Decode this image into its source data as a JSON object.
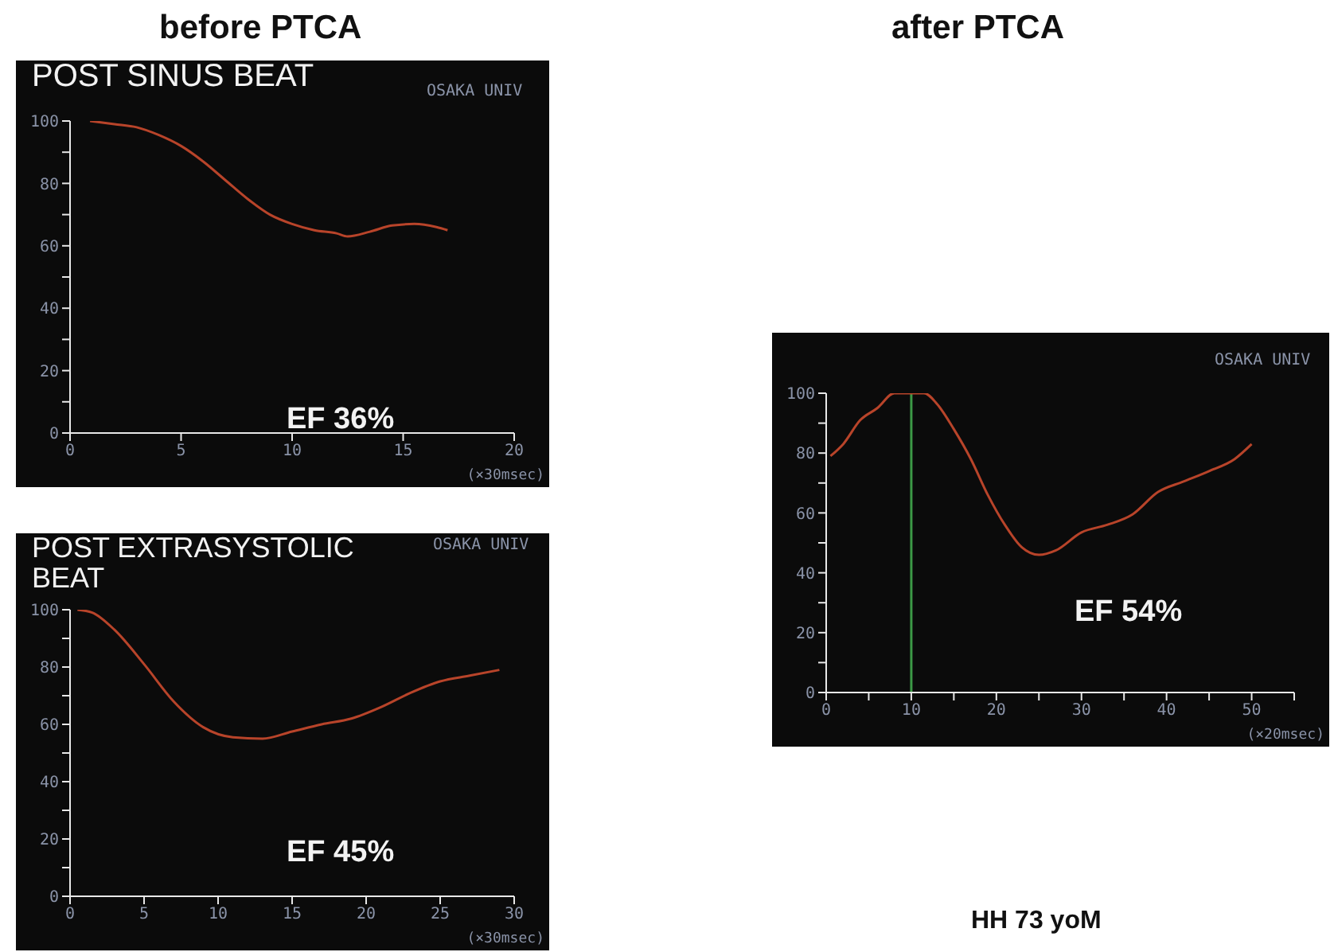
{
  "chart_data": [
    {
      "type": "line",
      "title": "before PTCA",
      "subtitle": "POST SINUS BEAT",
      "xlabel": "(×30msec)",
      "xlim": [
        0,
        20
      ],
      "xticks": [
        0,
        5,
        10,
        15,
        20
      ],
      "ylim": [
        0,
        100
      ],
      "yticks": [
        0,
        {
          "value": 10,
          "label": null
        },
        20,
        {
          "value": 30,
          "label": null
        },
        40,
        {
          "value": 50,
          "label": null
        },
        60,
        {
          "value": 70,
          "label": null
        },
        80,
        {
          "value": 90,
          "label": null
        },
        100
      ],
      "series": [
        {
          "color": "#b8442a",
          "x": [
            0.9,
            2,
            3,
            4,
            5,
            6,
            7,
            8,
            9,
            10,
            11,
            12,
            12.5,
            13.5,
            14.5,
            15.5,
            16.5,
            17
          ],
          "values": [
            100,
            99,
            98,
            95.5,
            92,
            87,
            81,
            75,
            70,
            67,
            65,
            64,
            63,
            64.5,
            66.5,
            67,
            66,
            65
          ]
        }
      ],
      "annotations": [
        "OSAKA UNIV",
        "EF 36%"
      ],
      "grid": false,
      "legend": false
    },
    {
      "type": "line",
      "subtitle": "POST EXTRASYSTOLIC BEAT",
      "xlabel": "(×30msec)",
      "xlim": [
        0,
        30
      ],
      "xticks": [
        0,
        5,
        10,
        15,
        20,
        25,
        30
      ],
      "ylim": [
        0,
        100
      ],
      "yticks": [
        0,
        {
          "value": 10,
          "label": null
        },
        20,
        {
          "value": 30,
          "label": null
        },
        40,
        {
          "value": 50,
          "label": null
        },
        60,
        {
          "value": 70,
          "label": null
        },
        80,
        {
          "value": 90,
          "label": null
        },
        100
      ],
      "series": [
        {
          "color": "#b8442a",
          "x": [
            0.5,
            1.5,
            3,
            5,
            7,
            9,
            11,
            13,
            15,
            17,
            19,
            21,
            23,
            25,
            27,
            29
          ],
          "values": [
            100,
            99,
            93,
            81,
            68,
            59,
            55.5,
            55,
            57.5,
            60,
            62,
            66,
            71,
            75,
            77,
            79
          ]
        }
      ],
      "annotations": [
        "OSAKA UNIV",
        "EF 45%"
      ],
      "grid": false,
      "legend": false
    },
    {
      "type": "line",
      "title": "after PTCA",
      "xlabel": "(×20msec)",
      "xlim": [
        0,
        55
      ],
      "xticks": [
        0,
        {
          "value": 5,
          "label": null
        },
        10,
        {
          "value": 15,
          "label": null
        },
        20,
        {
          "value": 25,
          "label": null
        },
        30,
        {
          "value": 35,
          "label": null
        },
        40,
        {
          "value": 45,
          "label": null
        },
        50,
        {
          "value": 55,
          "label": null
        }
      ],
      "ylim": [
        0,
        100
      ],
      "yticks": [
        0,
        {
          "value": 10,
          "label": null
        },
        20,
        {
          "value": 30,
          "label": null
        },
        40,
        {
          "value": 50,
          "label": null
        },
        60,
        {
          "value": 70,
          "label": null
        },
        80,
        {
          "value": 90,
          "label": null
        },
        100
      ],
      "series": [
        {
          "color": "#b8442a",
          "x": [
            0.5,
            2,
            4,
            6,
            8,
            11.5,
            13,
            15,
            17,
            19,
            21,
            23,
            25,
            27,
            30,
            33,
            36,
            39,
            42,
            45,
            48,
            50
          ],
          "values": [
            79,
            83,
            91,
            95,
            100,
            100,
            96.5,
            88,
            78,
            66,
            56,
            48.5,
            46,
            47.5,
            53.5,
            56,
            59.5,
            67,
            70.5,
            74,
            78,
            83
          ]
        }
      ],
      "ref_lines": [
        {
          "axis": "x",
          "value": 10,
          "color": "#3c9a46"
        }
      ],
      "annotations": [
        "OSAKA UNIV",
        "EF 54%",
        "HH 73 yoM"
      ],
      "grid": false,
      "legend": false
    }
  ]
}
